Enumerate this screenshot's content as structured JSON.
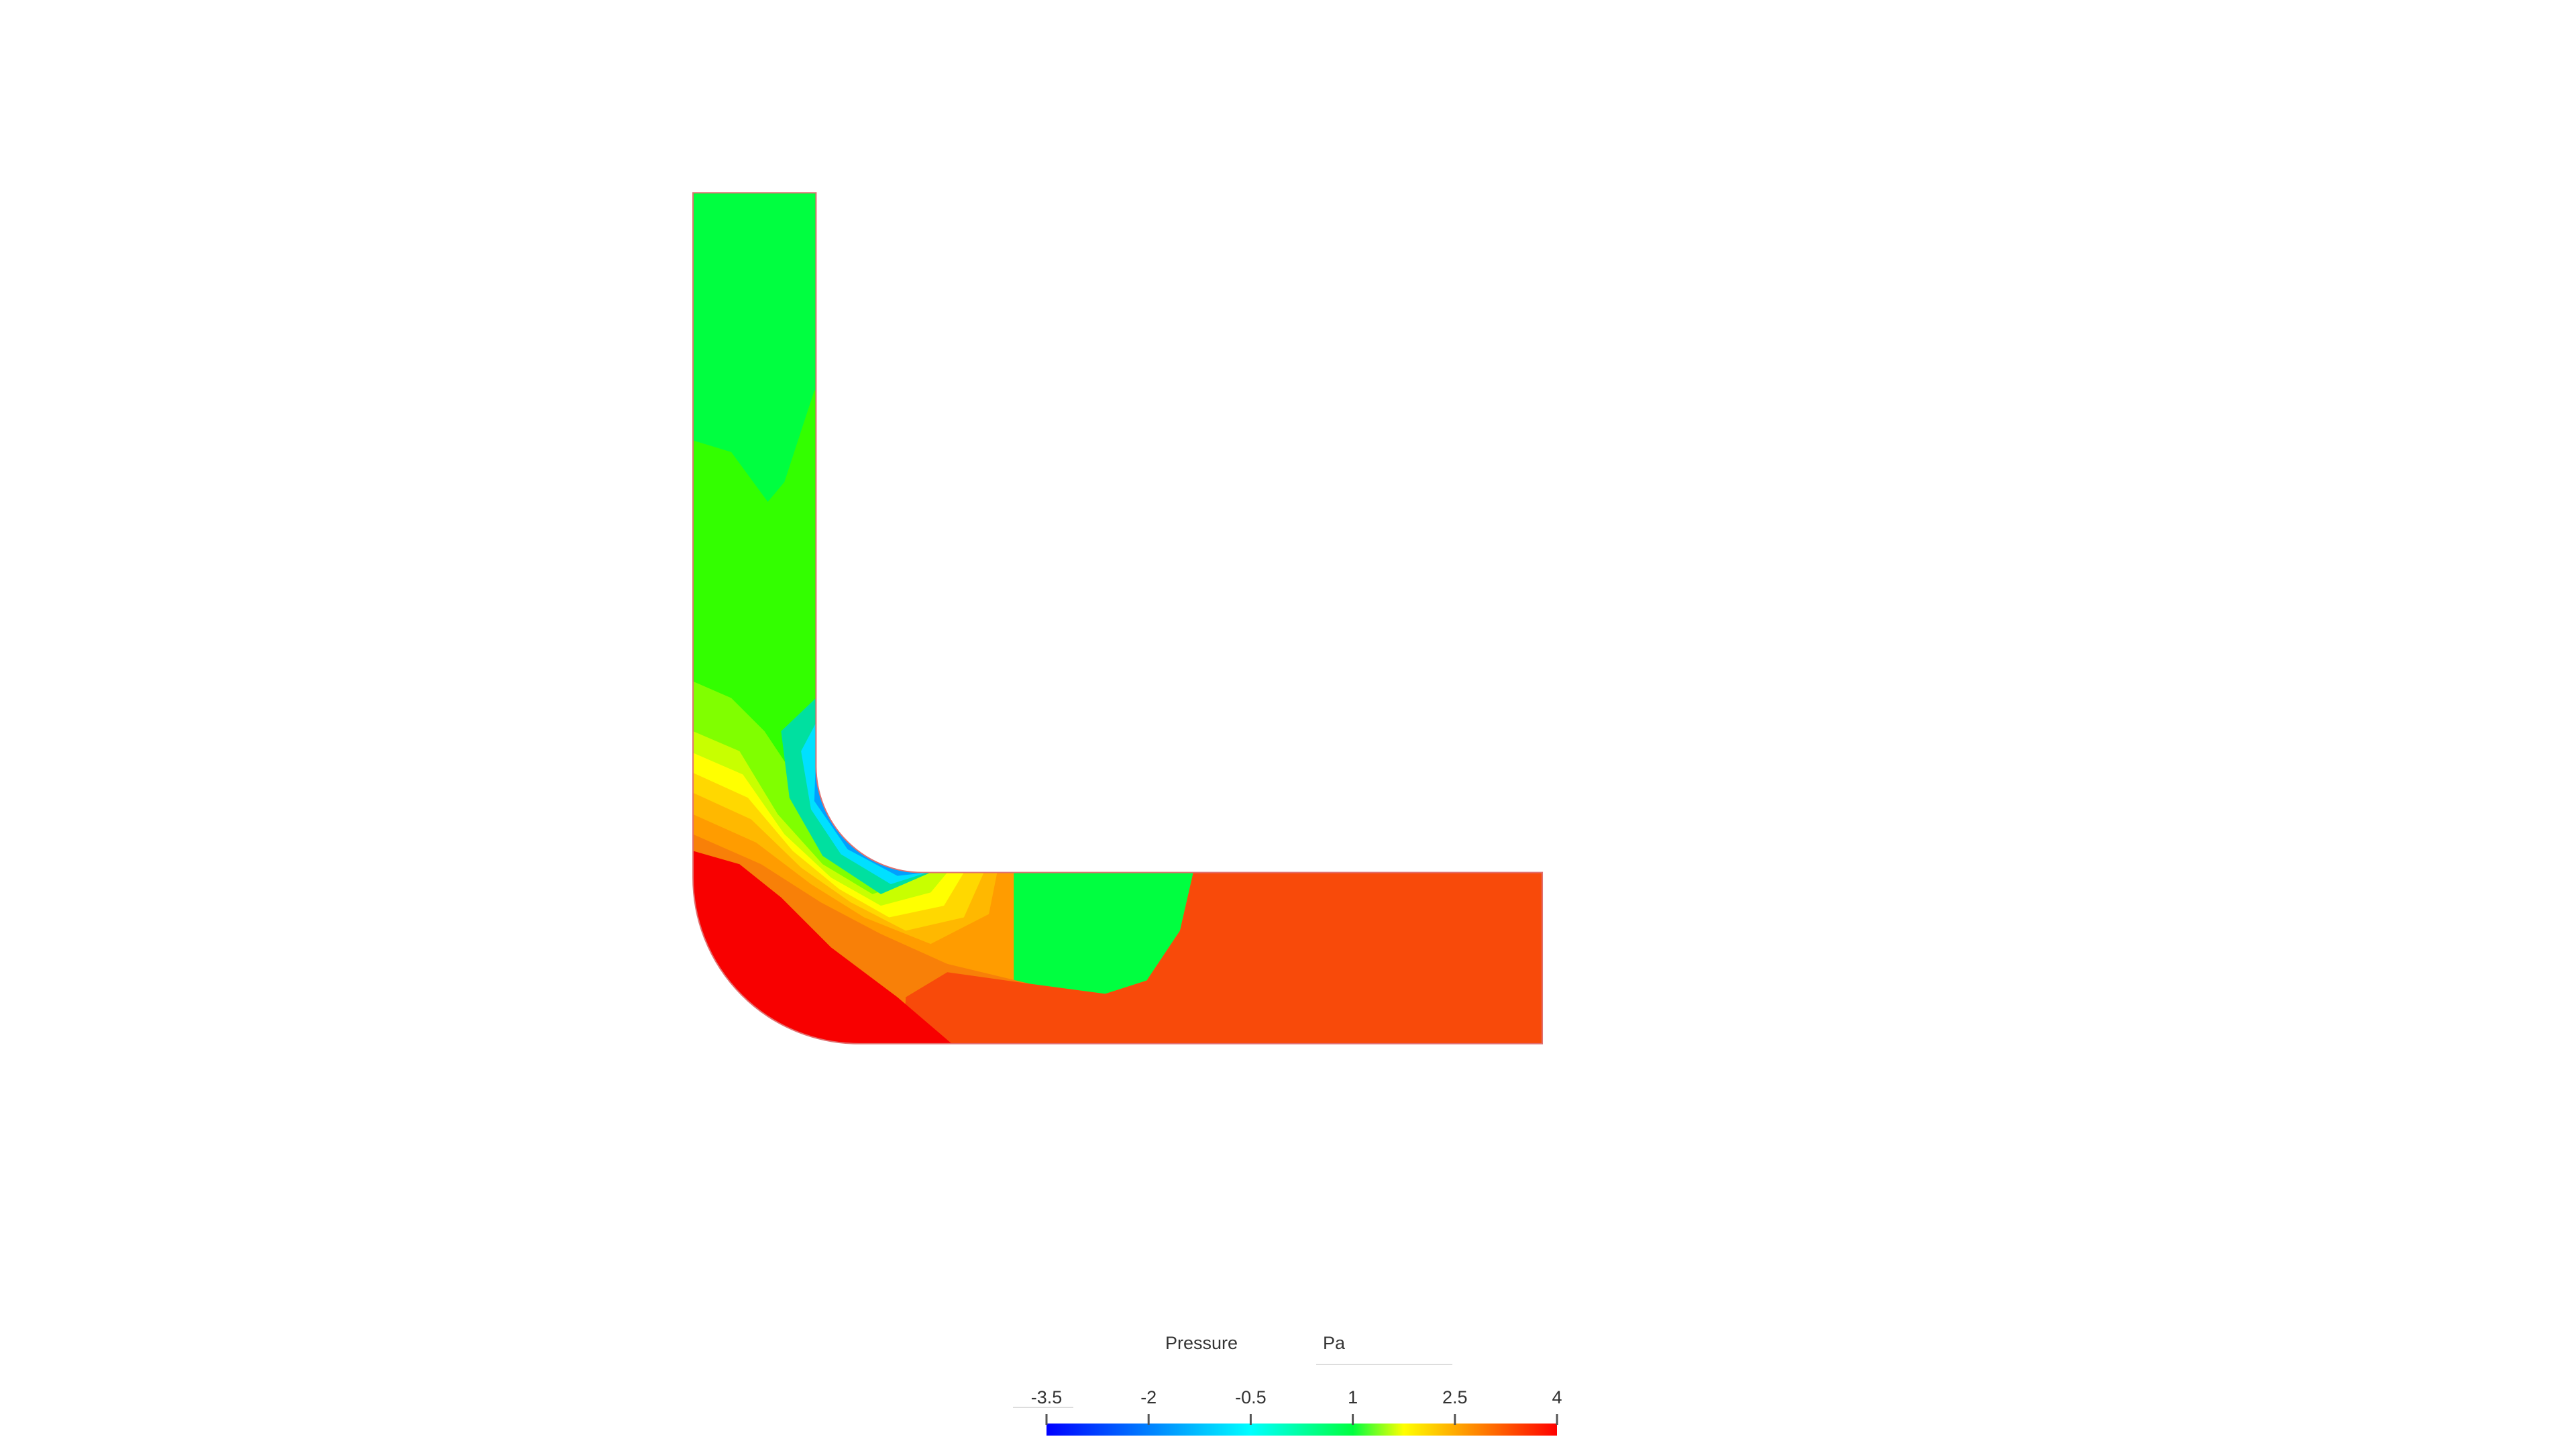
{
  "colorbar": {
    "title": "Pressure",
    "unit": "Pa",
    "range": [
      -3.5,
      4
    ],
    "ticks": [
      -3.5,
      -2,
      -0.5,
      1,
      2.5,
      4
    ]
  }
}
